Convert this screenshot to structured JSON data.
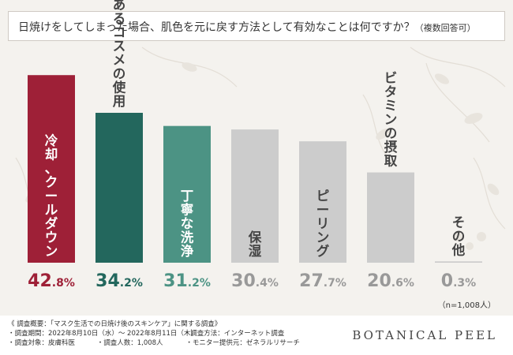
{
  "title": {
    "main": "日焼けをしてしまった場合、肌色を元に戻す方法として有効なことは何ですか？",
    "sub": "（複数回答可）"
  },
  "chart_data": {
    "type": "bar",
    "categories": [
      "冷却、クールダウン",
      "美白効果のあるコスメの使用",
      "丁寧な洗浄",
      "保湿",
      "ピーリング",
      "ビタミンの摂取",
      "その他"
    ],
    "values": [
      42.8,
      34.2,
      31.2,
      30.4,
      27.7,
      20.6,
      0.3
    ],
    "value_labels": [
      {
        "int": "42",
        "dec": ".8%"
      },
      {
        "int": "34",
        "dec": ".2%"
      },
      {
        "int": "31",
        "dec": ".2%"
      },
      {
        "int": "30",
        "dec": ".4%"
      },
      {
        "int": "27",
        "dec": ".7%"
      },
      {
        "int": "20",
        "dec": ".6%"
      },
      {
        "int": "0",
        "dec": ".3%"
      }
    ],
    "colors": [
      "#9e2037",
      "#23675d",
      "#4c9384",
      "#cccccc",
      "#cccccc",
      "#cccccc",
      "#cccccc"
    ],
    "label_colors": [
      "#9e2037",
      "#23675d",
      "#4c9384",
      "#999999",
      "#999999",
      "#999999",
      "#999999"
    ],
    "bar_text_colors": [
      "#ffffff",
      "#ffffff",
      "#ffffff",
      "#444444",
      "#444444",
      "#444444",
      "#444444"
    ],
    "ylim": [
      0,
      45
    ]
  },
  "sample_note": "（n=1,008人）",
  "survey": {
    "overview": "《 調査概要：「マスク生活での日焼け後のスキンケア」に関する調査》",
    "period": "・調査期間：2022年8月10日（水）〜 2022年8月11日（木）",
    "method": "・調査方法：インターネット調査",
    "target": "・調査対象：皮膚科医",
    "count": "・調査人数：1,008人",
    "provider": "・モニター提供元：ゼネラルリサーチ"
  },
  "brand": "BOTANICAL PEEL"
}
